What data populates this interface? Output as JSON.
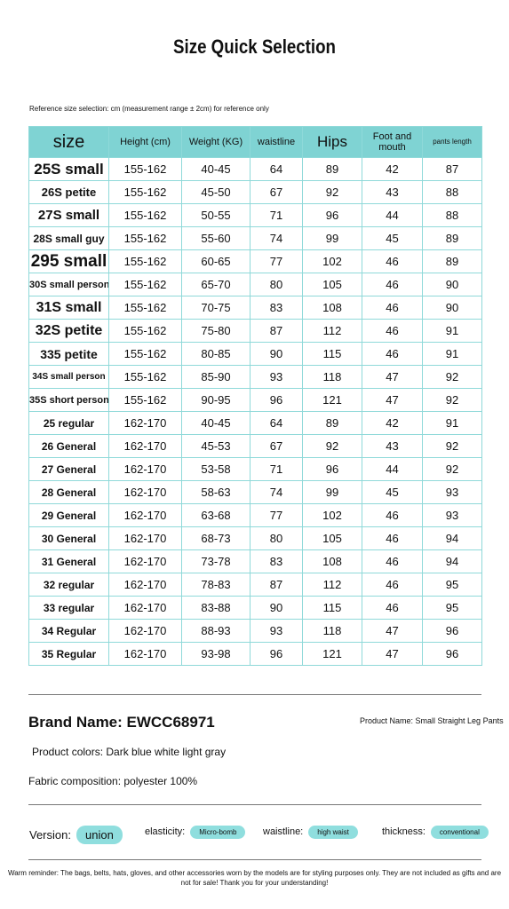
{
  "header": {
    "title": "Size Quick Selection",
    "reference": "Reference size selection: cm (measurement range ± 2cm) for reference only"
  },
  "table": {
    "columns": [
      "size",
      "Height (cm)",
      "Weight (KG)",
      "waistline",
      "Hips",
      "Foot and mouth",
      "pants length"
    ],
    "rows": [
      [
        "25S small",
        "155-162",
        "40-45",
        64,
        89,
        42,
        87
      ],
      [
        "26S petite",
        "155-162",
        "45-50",
        67,
        92,
        43,
        88
      ],
      [
        "27S small",
        "155-162",
        "50-55",
        71,
        96,
        44,
        88
      ],
      [
        "28S small guy",
        "155-162",
        "55-60",
        74,
        99,
        45,
        89
      ],
      [
        "295 small",
        "155-162",
        "60-65",
        77,
        102,
        46,
        89
      ],
      [
        "30S small person",
        "155-162",
        "65-70",
        80,
        105,
        46,
        90
      ],
      [
        "31S small",
        "155-162",
        "70-75",
        83,
        108,
        46,
        90
      ],
      [
        "32S petite",
        "155-162",
        "75-80",
        87,
        112,
        46,
        91
      ],
      [
        "335 petite",
        "155-162",
        "80-85",
        90,
        115,
        46,
        91
      ],
      [
        "34S small person",
        "155-162",
        "85-90",
        93,
        118,
        47,
        92
      ],
      [
        "35S short person",
        "155-162",
        "90-95",
        96,
        121,
        47,
        92
      ],
      [
        "25 regular",
        "162-170",
        "40-45",
        64,
        89,
        42,
        91
      ],
      [
        "26 General",
        "162-170",
        "45-53",
        67,
        92,
        43,
        92
      ],
      [
        "27 General",
        "162-170",
        "53-58",
        71,
        96,
        44,
        92
      ],
      [
        "28 General",
        "162-170",
        "58-63",
        74,
        99,
        45,
        93
      ],
      [
        "29 General",
        "162-170",
        "63-68",
        77,
        102,
        46,
        93
      ],
      [
        "30 General",
        "162-170",
        "68-73",
        80,
        105,
        46,
        94
      ],
      [
        "31 General",
        "162-170",
        "73-78",
        83,
        108,
        46,
        94
      ],
      [
        "32 regular",
        "162-170",
        "78-83",
        87,
        112,
        46,
        95
      ],
      [
        "33 regular",
        "162-170",
        "83-88",
        90,
        115,
        46,
        95
      ],
      [
        "34 Regular",
        "162-170",
        "88-93",
        93,
        118,
        47,
        96
      ],
      [
        "35 Regular",
        "162-170",
        "93-98",
        96,
        121,
        47,
        96
      ]
    ]
  },
  "info": {
    "brand_name": "Brand Name: EWCC68971",
    "product_name": "Product Name: Small Straight Leg Pants",
    "colors": "Product colors: Dark blue white light gray",
    "fabric": "Fabric composition: polyester 100%",
    "attributes": [
      {
        "label": "Version:",
        "value": "union"
      },
      {
        "label": "elasticity:",
        "value": "Micro-bomb"
      },
      {
        "label": "waistline:",
        "value": "high waist"
      },
      {
        "label": "thickness:",
        "value": "conventional"
      }
    ],
    "reminder": "Warm reminder: The bags, belts, hats, gloves, and other accessories worn by the models are for styling purposes only. They are not included as gifts and are not for sale! Thank you for your understanding!"
  }
}
